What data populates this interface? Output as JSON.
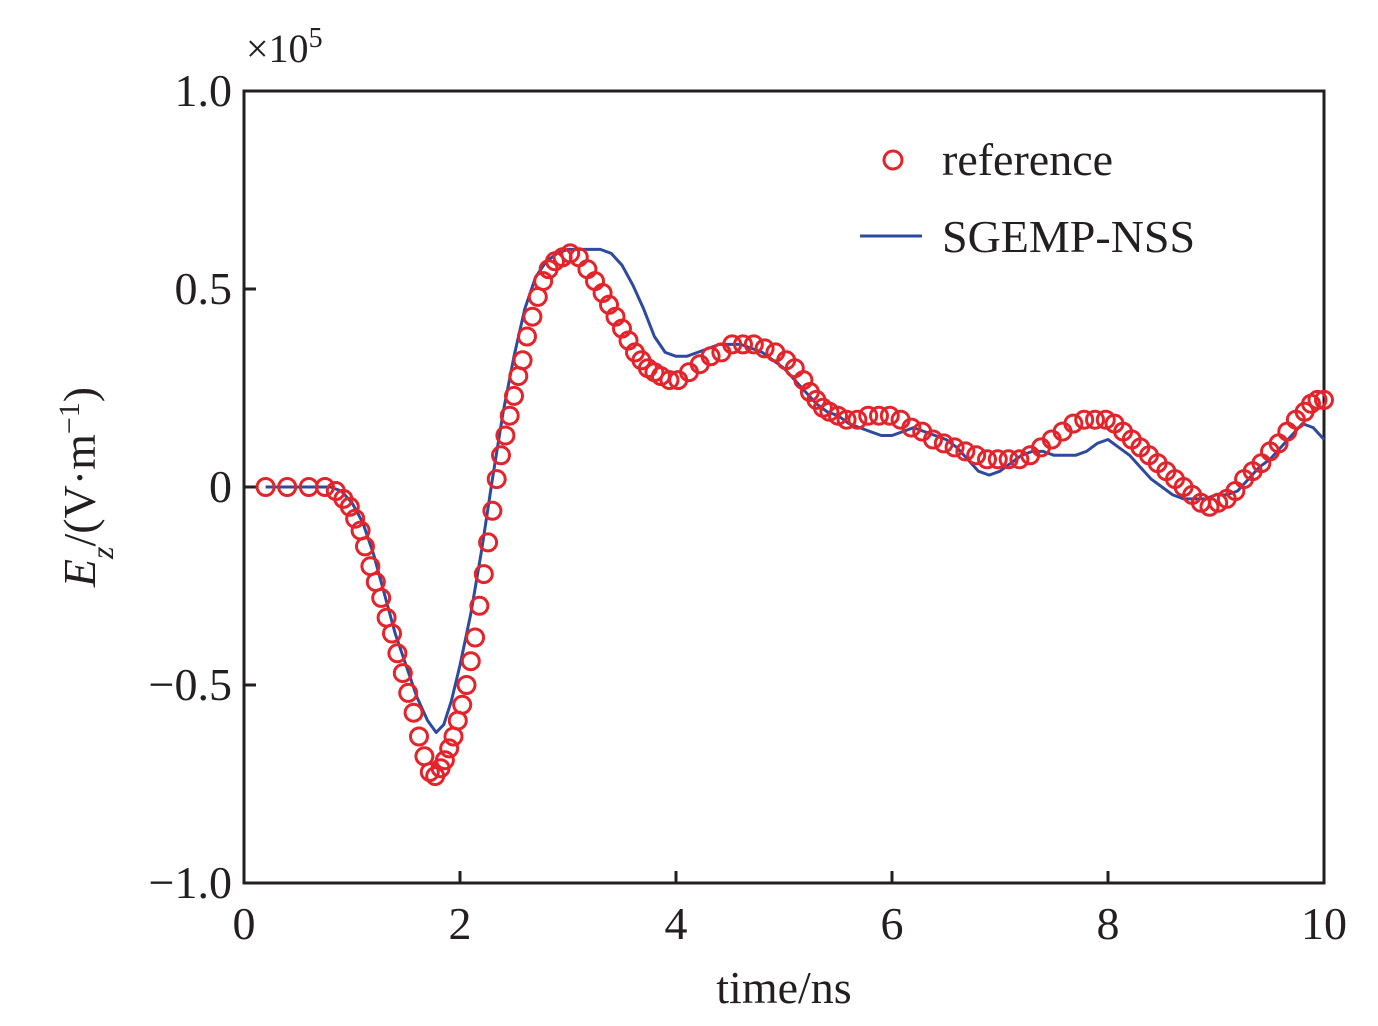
{
  "chart_data": {
    "type": "line",
    "title": "",
    "xlabel": "time/ns",
    "ylabel_main": "E",
    "ylabel_sub": "z",
    "ylabel_rest": "/(V·m",
    "ylabel_sup": "−1",
    "ylabel_close": ")",
    "y_multiplier_prefix": "×10",
    "y_multiplier_exp": "5",
    "xlim": [
      0,
      10
    ],
    "ylim": [
      -1.0,
      1.0
    ],
    "x_ticks": [
      0,
      2,
      4,
      6,
      8,
      10
    ],
    "x_tick_labels": [
      "0",
      "2",
      "4",
      "6",
      "8",
      "10"
    ],
    "y_ticks": [
      1.0,
      0.5,
      0,
      -0.5,
      -1.0
    ],
    "y_tick_labels": [
      "1.0",
      "0.5",
      "0",
      "−0.5",
      "−1.0"
    ],
    "grid": false,
    "legend_position": "top-right",
    "colors": {
      "reference": "#e3242b",
      "sgemp": "#2e4a9e",
      "axis": "#231f20"
    },
    "series": [
      {
        "name": "reference",
        "style": "markers-circle",
        "x": [
          0.2,
          0.4,
          0.6,
          0.75,
          0.85,
          0.92,
          0.98,
          1.03,
          1.08,
          1.12,
          1.17,
          1.22,
          1.27,
          1.32,
          1.37,
          1.42,
          1.47,
          1.52,
          1.57,
          1.62,
          1.67,
          1.72,
          1.77,
          1.82,
          1.86,
          1.9,
          1.94,
          1.98,
          2.02,
          2.06,
          2.1,
          2.14,
          2.18,
          2.22,
          2.26,
          2.3,
          2.34,
          2.38,
          2.42,
          2.46,
          2.5,
          2.54,
          2.58,
          2.62,
          2.67,
          2.72,
          2.77,
          2.82,
          2.88,
          2.95,
          3.02,
          3.1,
          3.18,
          3.25,
          3.32,
          3.38,
          3.44,
          3.5,
          3.56,
          3.62,
          3.68,
          3.74,
          3.8,
          3.86,
          3.94,
          4.02,
          4.12,
          4.22,
          4.32,
          4.42,
          4.52,
          4.62,
          4.72,
          4.82,
          4.92,
          5.02,
          5.1,
          5.18,
          5.24,
          5.3,
          5.36,
          5.42,
          5.5,
          5.58,
          5.68,
          5.78,
          5.88,
          5.98,
          6.08,
          6.18,
          6.28,
          6.38,
          6.48,
          6.58,
          6.68,
          6.78,
          6.88,
          6.98,
          7.08,
          7.18,
          7.28,
          7.38,
          7.48,
          7.58,
          7.68,
          7.78,
          7.88,
          7.98,
          8.06,
          8.14,
          8.22,
          8.3,
          8.38,
          8.46,
          8.54,
          8.62,
          8.7,
          8.78,
          8.86,
          8.94,
          9.02,
          9.1,
          9.18,
          9.26,
          9.34,
          9.42,
          9.5,
          9.58,
          9.66,
          9.74,
          9.82,
          9.88,
          9.94,
          10.0
        ],
        "y": [
          0.0,
          0.0,
          0.0,
          0.0,
          -0.01,
          -0.03,
          -0.05,
          -0.08,
          -0.11,
          -0.15,
          -0.2,
          -0.24,
          -0.28,
          -0.33,
          -0.37,
          -0.42,
          -0.47,
          -0.52,
          -0.57,
          -0.63,
          -0.68,
          -0.72,
          -0.73,
          -0.71,
          -0.69,
          -0.66,
          -0.63,
          -0.59,
          -0.55,
          -0.5,
          -0.44,
          -0.38,
          -0.3,
          -0.22,
          -0.14,
          -0.06,
          0.02,
          0.08,
          0.13,
          0.18,
          0.23,
          0.28,
          0.32,
          0.38,
          0.43,
          0.48,
          0.52,
          0.55,
          0.57,
          0.58,
          0.59,
          0.58,
          0.55,
          0.52,
          0.49,
          0.46,
          0.43,
          0.4,
          0.37,
          0.34,
          0.32,
          0.3,
          0.29,
          0.28,
          0.27,
          0.27,
          0.29,
          0.31,
          0.33,
          0.34,
          0.36,
          0.36,
          0.36,
          0.35,
          0.34,
          0.32,
          0.3,
          0.27,
          0.24,
          0.22,
          0.2,
          0.19,
          0.18,
          0.17,
          0.17,
          0.18,
          0.18,
          0.18,
          0.17,
          0.15,
          0.14,
          0.12,
          0.11,
          0.1,
          0.09,
          0.08,
          0.07,
          0.07,
          0.07,
          0.07,
          0.08,
          0.1,
          0.12,
          0.14,
          0.16,
          0.17,
          0.17,
          0.17,
          0.16,
          0.14,
          0.12,
          0.1,
          0.08,
          0.06,
          0.04,
          0.02,
          0.0,
          -0.02,
          -0.04,
          -0.05,
          -0.04,
          -0.03,
          -0.01,
          0.02,
          0.04,
          0.06,
          0.09,
          0.11,
          0.14,
          0.17,
          0.19,
          0.21,
          0.22,
          0.22
        ]
      },
      {
        "name": "SGEMP-NSS",
        "style": "line",
        "x": [
          0.2,
          0.6,
          0.8,
          0.9,
          1.0,
          1.1,
          1.2,
          1.3,
          1.4,
          1.5,
          1.6,
          1.7,
          1.78,
          1.85,
          1.92,
          2.0,
          2.1,
          2.2,
          2.3,
          2.4,
          2.5,
          2.6,
          2.7,
          2.8,
          2.9,
          3.0,
          3.1,
          3.2,
          3.3,
          3.4,
          3.5,
          3.6,
          3.7,
          3.8,
          3.9,
          4.0,
          4.1,
          4.2,
          4.3,
          4.4,
          4.5,
          4.6,
          4.7,
          4.8,
          4.9,
          5.0,
          5.1,
          5.2,
          5.3,
          5.4,
          5.5,
          5.6,
          5.7,
          5.8,
          5.9,
          6.0,
          6.1,
          6.2,
          6.3,
          6.4,
          6.5,
          6.6,
          6.7,
          6.8,
          6.9,
          7.0,
          7.1,
          7.2,
          7.3,
          7.4,
          7.5,
          7.6,
          7.7,
          7.8,
          7.9,
          8.0,
          8.1,
          8.2,
          8.3,
          8.4,
          8.5,
          8.6,
          8.7,
          8.8,
          8.9,
          9.0,
          9.1,
          9.2,
          9.3,
          9.4,
          9.5,
          9.6,
          9.7,
          9.8,
          9.9,
          10.0
        ],
        "y": [
          0.0,
          0.0,
          0.0,
          -0.01,
          -0.04,
          -0.09,
          -0.17,
          -0.27,
          -0.37,
          -0.45,
          -0.53,
          -0.59,
          -0.62,
          -0.6,
          -0.54,
          -0.45,
          -0.32,
          -0.16,
          0.02,
          0.19,
          0.33,
          0.45,
          0.53,
          0.57,
          0.59,
          0.6,
          0.6,
          0.6,
          0.6,
          0.59,
          0.56,
          0.51,
          0.45,
          0.38,
          0.34,
          0.33,
          0.33,
          0.34,
          0.35,
          0.36,
          0.36,
          0.36,
          0.35,
          0.34,
          0.32,
          0.3,
          0.27,
          0.24,
          0.21,
          0.19,
          0.18,
          0.16,
          0.15,
          0.14,
          0.13,
          0.13,
          0.14,
          0.15,
          0.14,
          0.13,
          0.12,
          0.1,
          0.07,
          0.04,
          0.03,
          0.04,
          0.06,
          0.08,
          0.09,
          0.09,
          0.08,
          0.08,
          0.08,
          0.09,
          0.11,
          0.12,
          0.1,
          0.08,
          0.05,
          0.02,
          0.0,
          -0.02,
          -0.03,
          -0.03,
          -0.03,
          -0.02,
          -0.02,
          -0.01,
          0.02,
          0.05,
          0.07,
          0.1,
          0.13,
          0.16,
          0.15,
          0.12
        ]
      }
    ]
  }
}
